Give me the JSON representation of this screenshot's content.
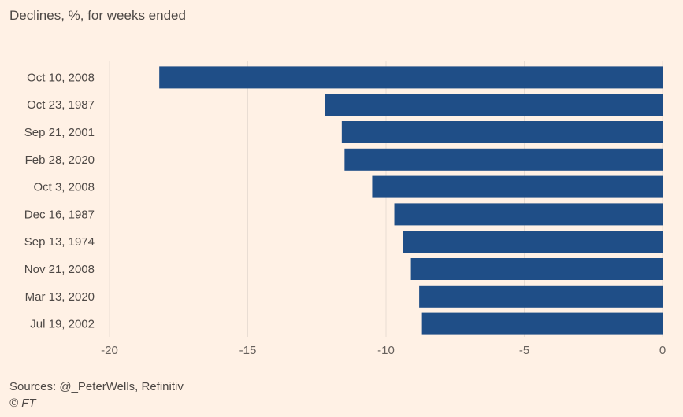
{
  "chart_data": {
    "type": "bar",
    "orientation": "horizontal",
    "title": "Declines, %, for weeks ended",
    "categories": [
      "Oct 10, 2008",
      "Oct 23, 1987",
      "Sep 21, 2001",
      "Feb 28, 2020",
      "Oct 3, 2008",
      "Dec 16, 1987",
      "Sep 13, 1974",
      "Nov 21, 2008",
      "Mar 13, 2020",
      "Jul 19, 2002"
    ],
    "values": [
      -18.2,
      -12.2,
      -11.6,
      -11.5,
      -10.5,
      -9.7,
      -9.4,
      -9.1,
      -8.8,
      -8.7
    ],
    "xlim": [
      -20,
      0
    ],
    "xticks": [
      -20,
      -15,
      -10,
      -5,
      0
    ],
    "grid": true,
    "bar_color": "#1f4e87",
    "background": "#fff1e5"
  },
  "footer": {
    "sources": "Sources: @_PeterWells, Refinitiv",
    "copyright": "© FT"
  }
}
